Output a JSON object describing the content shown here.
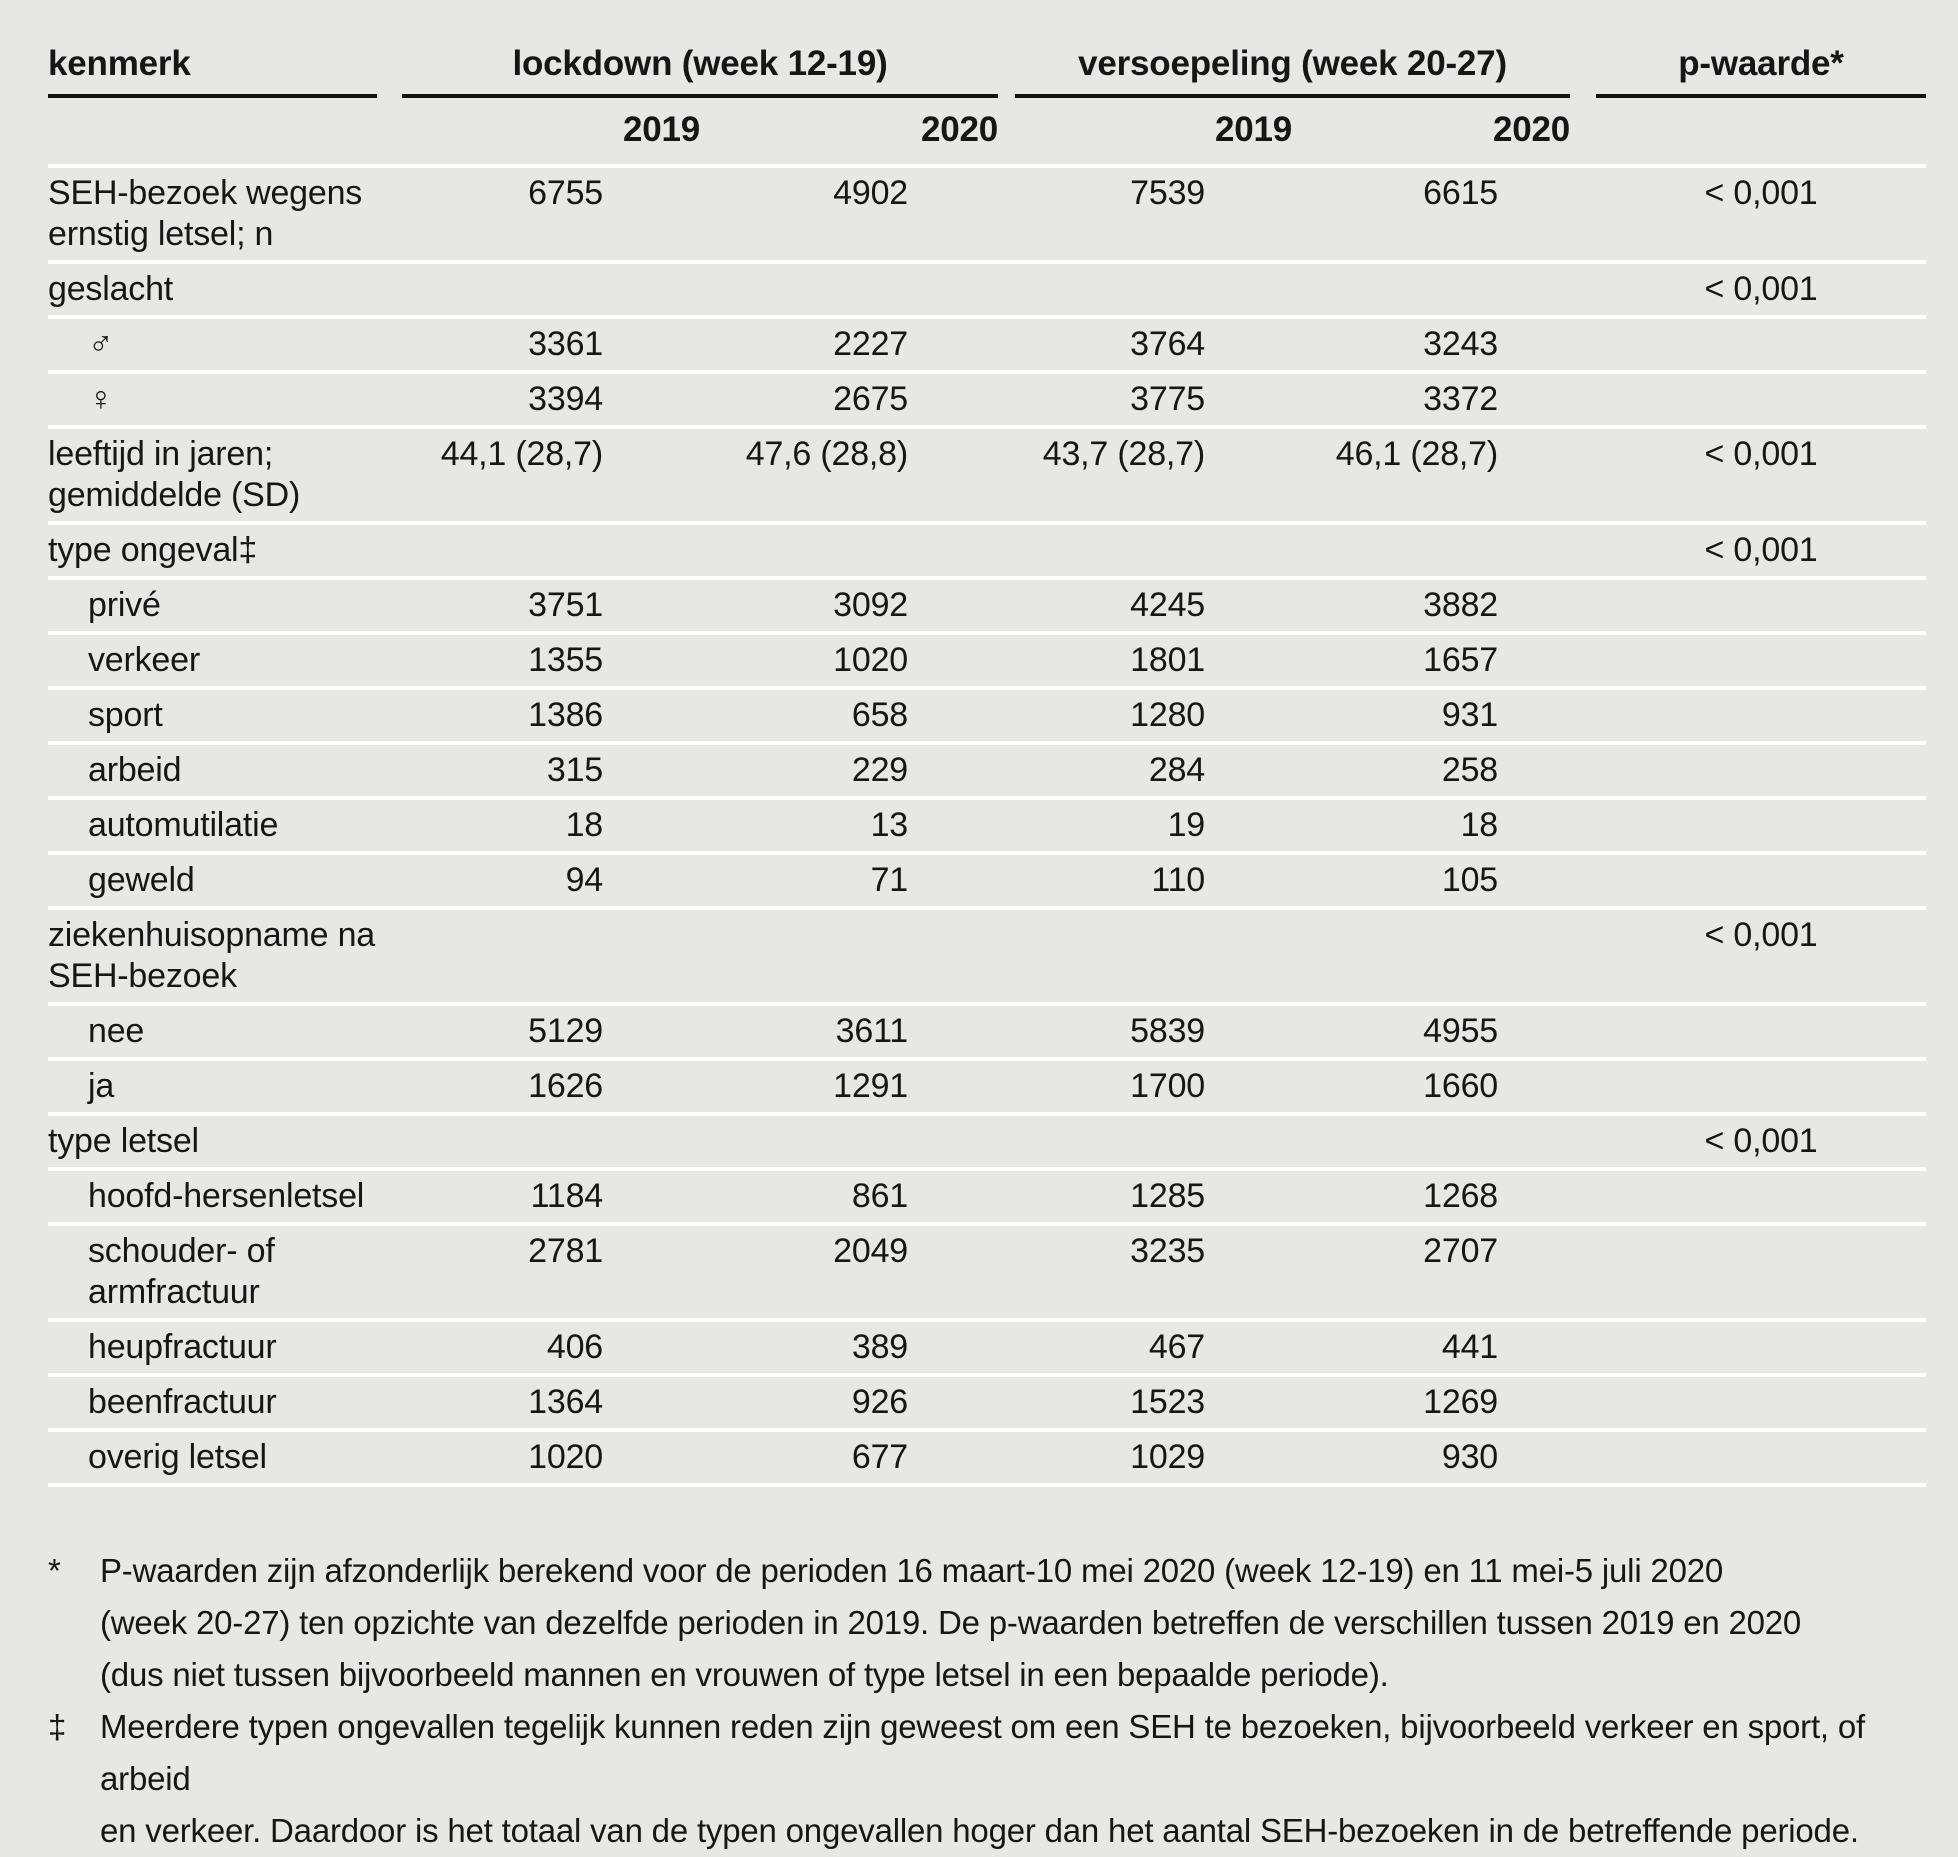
{
  "table": {
    "header": {
      "kenmerk": "kenmerk",
      "groups": [
        {
          "label": "lockdown (week 12-19)"
        },
        {
          "label": "versoepeling (week 20-27)"
        }
      ],
      "pvalue_label": "p-waarde*",
      "year_cols": [
        "2019",
        "2020",
        "2019",
        "2020"
      ]
    },
    "rows": [
      {
        "label": "SEH-bezoek wegens\nernstig letsel; n",
        "indent": false,
        "values": [
          "6755",
          "4902",
          "7539",
          "6615"
        ],
        "p": "< 0,001"
      },
      {
        "label": "geslacht",
        "indent": false,
        "values": [
          "",
          "",
          "",
          ""
        ],
        "p": "< 0,001"
      },
      {
        "label": "♂",
        "indent": true,
        "values": [
          "3361",
          "2227",
          "3764",
          "3243"
        ],
        "p": ""
      },
      {
        "label": "♀",
        "indent": true,
        "values": [
          "3394",
          "2675",
          "3775",
          "3372"
        ],
        "p": ""
      },
      {
        "label": "leeftijd in jaren;\ngemiddelde (SD)",
        "indent": false,
        "values": [
          "44,1 (28,7)",
          "47,6 (28,8)",
          "43,7 (28,7)",
          "46,1 (28,7)"
        ],
        "p": "< 0,001"
      },
      {
        "label": "type ongeval‡",
        "indent": false,
        "values": [
          "",
          "",
          "",
          ""
        ],
        "p": "< 0,001"
      },
      {
        "label": "privé",
        "indent": true,
        "values": [
          "3751",
          "3092",
          "4245",
          "3882"
        ],
        "p": ""
      },
      {
        "label": "verkeer",
        "indent": true,
        "values": [
          "1355",
          "1020",
          "1801",
          "1657"
        ],
        "p": ""
      },
      {
        "label": "sport",
        "indent": true,
        "values": [
          "1386",
          "658",
          "1280",
          "931"
        ],
        "p": ""
      },
      {
        "label": "arbeid",
        "indent": true,
        "values": [
          "315",
          "229",
          "284",
          "258"
        ],
        "p": ""
      },
      {
        "label": "automutilatie",
        "indent": true,
        "values": [
          "18",
          "13",
          "19",
          "18"
        ],
        "p": ""
      },
      {
        "label": "geweld",
        "indent": true,
        "values": [
          "94",
          "71",
          "110",
          "105"
        ],
        "p": ""
      },
      {
        "label": "ziekenhuisopname na\nSEH-bezoek",
        "indent": false,
        "values": [
          "",
          "",
          "",
          ""
        ],
        "p": "< 0,001"
      },
      {
        "label": "nee",
        "indent": true,
        "values": [
          "5129",
          "3611",
          "5839",
          "4955"
        ],
        "p": ""
      },
      {
        "label": "ja",
        "indent": true,
        "values": [
          "1626",
          "1291",
          "1700",
          "1660"
        ],
        "p": ""
      },
      {
        "label": "type letsel",
        "indent": false,
        "values": [
          "",
          "",
          "",
          ""
        ],
        "p": "< 0,001"
      },
      {
        "label": "hoofd-hersenletsel",
        "indent": true,
        "values": [
          "1184",
          "861",
          "1285",
          "1268"
        ],
        "p": ""
      },
      {
        "label": "schouder- of\narmfractuur",
        "indent": true,
        "values": [
          "2781",
          "2049",
          "3235",
          "2707"
        ],
        "p": ""
      },
      {
        "label": "heupfractuur",
        "indent": true,
        "values": [
          "406",
          "389",
          "467",
          "441"
        ],
        "p": ""
      },
      {
        "label": "beenfractuur",
        "indent": true,
        "values": [
          "1364",
          "926",
          "1523",
          "1269"
        ],
        "p": ""
      },
      {
        "label": "overig letsel",
        "indent": true,
        "values": [
          "1020",
          "677",
          "1029",
          "930"
        ],
        "p": ""
      }
    ]
  },
  "footnotes": [
    {
      "marker": "*",
      "text": "P-waarden zijn afzonderlijk berekend voor de perioden 16 maart-10 mei 2020 (week 12-19) en 11 mei-5 juli 2020\n(week 20-27) ten opzichte van dezelfde perioden in 2019. De p-waarden betreffen de verschillen tussen 2019 en 2020\n(dus niet tussen bijvoorbeeld mannen en vrouwen of type letsel in een bepaalde periode)."
    },
    {
      "marker": "‡",
      "text": "Meerdere typen ongevallen tegelijk kunnen reden zijn geweest om een SEH te bezoeken, bijvoorbeeld verkeer en sport, of arbeid\nen verkeer. Daardoor is het totaal van de typen ongevallen hoger dan het aantal SEH-bezoeken in de betreffende periode."
    }
  ],
  "colors": {
    "background": "#e7e7e5",
    "text": "#161616",
    "header_rule": "#141414",
    "row_separator": "#ffffff"
  }
}
